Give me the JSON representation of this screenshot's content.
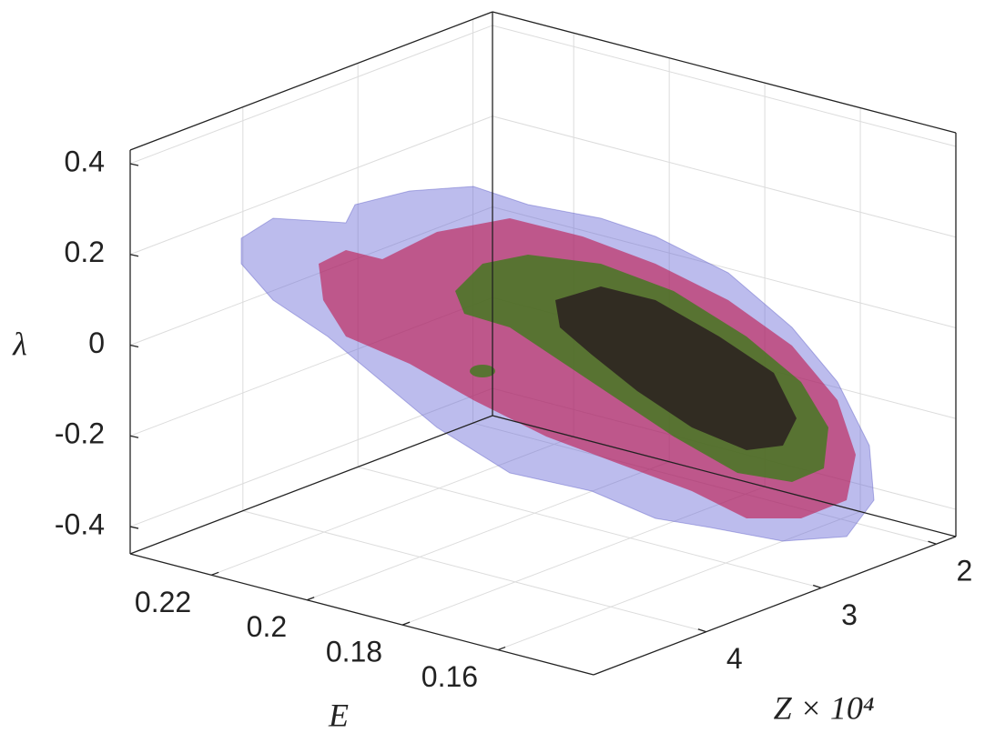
{
  "chart_data": {
    "type": "isosurface3d",
    "xlabel": "E",
    "ylabel": "Z × 10⁴",
    "zlabel": "λ",
    "xlim": [
      0.237,
      0.14
    ],
    "xticks": [
      0.22,
      0.2,
      0.18,
      0.16
    ],
    "ylim": [
      4.98,
      1.83
    ],
    "yticks": [
      4,
      3,
      2
    ],
    "zlim": [
      -0.46,
      0.43
    ],
    "zticks": [
      0.4,
      0.2,
      0,
      -0.2,
      -0.4
    ],
    "grid": true
  }
}
